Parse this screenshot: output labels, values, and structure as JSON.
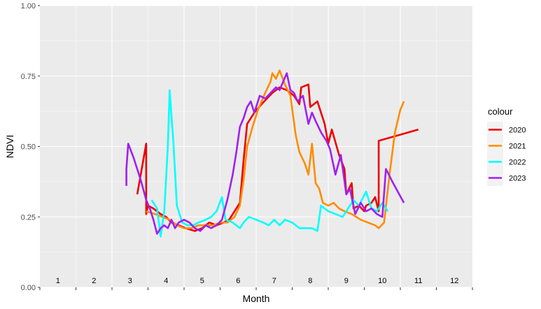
{
  "chart_data": {
    "type": "line",
    "xlabel": "Month",
    "ylabel": "NDVI",
    "xlim": [
      0.5,
      12.5
    ],
    "ylim": [
      0,
      1
    ],
    "yticks": [
      0.0,
      0.25,
      0.5,
      0.75,
      1.0
    ],
    "ytick_labels": [
      "0.00",
      "0.25",
      "0.50",
      "0.75",
      "1.00"
    ],
    "month_labels": [
      "1",
      "2",
      "3",
      "4",
      "5",
      "6",
      "7",
      "8",
      "9",
      "10",
      "11",
      "12"
    ],
    "grid": true,
    "background": "#ebebeb",
    "legend": {
      "title": "colour",
      "position": "right"
    },
    "series": [
      {
        "name": "2020",
        "color": "#ee0000",
        "points": [
          [
            3.2,
            0.33
          ],
          [
            3.45,
            0.51
          ],
          [
            3.45,
            0.26
          ],
          [
            3.5,
            0.29
          ],
          [
            3.65,
            0.28
          ],
          [
            3.85,
            0.26
          ],
          [
            4.0,
            0.25
          ],
          [
            4.15,
            0.23
          ],
          [
            4.35,
            0.22
          ],
          [
            4.55,
            0.21
          ],
          [
            4.8,
            0.2
          ],
          [
            5.0,
            0.21
          ],
          [
            5.2,
            0.23
          ],
          [
            5.4,
            0.22
          ],
          [
            5.6,
            0.23
          ],
          [
            5.75,
            0.24
          ],
          [
            5.9,
            0.27
          ],
          [
            6.05,
            0.3
          ],
          [
            6.15,
            0.45
          ],
          [
            6.25,
            0.58
          ],
          [
            6.45,
            0.62
          ],
          [
            6.65,
            0.65
          ],
          [
            6.8,
            0.67
          ],
          [
            6.95,
            0.69
          ],
          [
            7.15,
            0.71
          ],
          [
            7.35,
            0.7
          ],
          [
            7.55,
            0.68
          ],
          [
            7.7,
            0.65
          ],
          [
            7.75,
            0.71
          ],
          [
            7.95,
            0.72
          ],
          [
            8.0,
            0.64
          ],
          [
            8.2,
            0.66
          ],
          [
            8.4,
            0.58
          ],
          [
            8.5,
            0.51
          ],
          [
            8.6,
            0.56
          ],
          [
            8.8,
            0.47
          ],
          [
            8.95,
            0.42
          ],
          [
            9.0,
            0.33
          ],
          [
            9.15,
            0.37
          ],
          [
            9.2,
            0.28
          ],
          [
            9.35,
            0.29
          ],
          [
            9.5,
            0.27
          ],
          [
            9.55,
            0.29
          ],
          [
            9.7,
            0.3
          ],
          [
            9.8,
            0.32
          ],
          [
            9.9,
            0.27
          ],
          [
            9.9,
            0.52
          ],
          [
            10.45,
            0.54
          ],
          [
            11.0,
            0.56
          ]
        ]
      },
      {
        "name": "2021",
        "color": "#ff8c00",
        "points": [
          [
            3.45,
            0.27
          ],
          [
            3.7,
            0.26
          ],
          [
            3.9,
            0.25
          ],
          [
            4.1,
            0.24
          ],
          [
            4.3,
            0.22
          ],
          [
            4.5,
            0.21
          ],
          [
            4.7,
            0.21
          ],
          [
            4.9,
            0.22
          ],
          [
            5.1,
            0.22
          ],
          [
            5.3,
            0.22
          ],
          [
            5.5,
            0.23
          ],
          [
            5.7,
            0.23
          ],
          [
            5.9,
            0.25
          ],
          [
            6.05,
            0.29
          ],
          [
            6.15,
            0.38
          ],
          [
            6.25,
            0.5
          ],
          [
            6.4,
            0.57
          ],
          [
            6.55,
            0.63
          ],
          [
            6.75,
            0.69
          ],
          [
            6.9,
            0.73
          ],
          [
            6.95,
            0.76
          ],
          [
            7.05,
            0.74
          ],
          [
            7.15,
            0.77
          ],
          [
            7.3,
            0.72
          ],
          [
            7.45,
            0.68
          ],
          [
            7.6,
            0.54
          ],
          [
            7.7,
            0.48
          ],
          [
            7.85,
            0.44
          ],
          [
            7.95,
            0.4
          ],
          [
            8.05,
            0.51
          ],
          [
            8.15,
            0.37
          ],
          [
            8.25,
            0.35
          ],
          [
            8.35,
            0.3
          ],
          [
            8.5,
            0.29
          ],
          [
            8.65,
            0.3
          ],
          [
            8.8,
            0.28
          ],
          [
            8.95,
            0.27
          ],
          [
            9.15,
            0.26
          ],
          [
            9.4,
            0.24
          ],
          [
            9.6,
            0.23
          ],
          [
            9.8,
            0.22
          ],
          [
            9.9,
            0.21
          ],
          [
            10.05,
            0.23
          ],
          [
            10.2,
            0.4
          ],
          [
            10.35,
            0.55
          ],
          [
            10.5,
            0.63
          ],
          [
            10.6,
            0.66
          ]
        ]
      },
      {
        "name": "2022",
        "color": "#00ffff",
        "points": [
          [
            3.6,
            0.31
          ],
          [
            3.75,
            0.28
          ],
          [
            3.85,
            0.18
          ],
          [
            3.95,
            0.27
          ],
          [
            4.05,
            0.5
          ],
          [
            4.1,
            0.7
          ],
          [
            4.2,
            0.52
          ],
          [
            4.3,
            0.29
          ],
          [
            4.45,
            0.23
          ],
          [
            4.6,
            0.22
          ],
          [
            4.75,
            0.22
          ],
          [
            4.9,
            0.23
          ],
          [
            5.1,
            0.24
          ],
          [
            5.25,
            0.25
          ],
          [
            5.4,
            0.27
          ],
          [
            5.55,
            0.32
          ],
          [
            5.65,
            0.24
          ],
          [
            5.85,
            0.23
          ],
          [
            6.05,
            0.21
          ],
          [
            6.15,
            0.23
          ],
          [
            6.3,
            0.25
          ],
          [
            6.5,
            0.24
          ],
          [
            6.7,
            0.23
          ],
          [
            6.85,
            0.22
          ],
          [
            7.0,
            0.24
          ],
          [
            7.15,
            0.22
          ],
          [
            7.3,
            0.24
          ],
          [
            7.5,
            0.23
          ],
          [
            7.7,
            0.21
          ],
          [
            7.9,
            0.21
          ],
          [
            8.05,
            0.21
          ],
          [
            8.2,
            0.2
          ],
          [
            8.3,
            0.29
          ],
          [
            8.5,
            0.27
          ],
          [
            8.7,
            0.26
          ],
          [
            8.9,
            0.25
          ],
          [
            9.05,
            0.28
          ],
          [
            9.2,
            0.31
          ],
          [
            9.35,
            0.29
          ],
          [
            9.55,
            0.34
          ],
          [
            9.7,
            0.28
          ],
          [
            9.85,
            0.27
          ],
          [
            10.0,
            0.3
          ],
          [
            10.15,
            0.27
          ]
        ]
      },
      {
        "name": "2023",
        "color": "#a020f0",
        "points": [
          [
            2.9,
            0.36
          ],
          [
            2.9,
            0.42
          ],
          [
            2.95,
            0.51
          ],
          [
            3.1,
            0.46
          ],
          [
            3.3,
            0.38
          ],
          [
            3.45,
            0.31
          ],
          [
            3.55,
            0.28
          ],
          [
            3.65,
            0.24
          ],
          [
            3.75,
            0.19
          ],
          [
            3.85,
            0.21
          ],
          [
            3.95,
            0.22
          ],
          [
            4.05,
            0.21
          ],
          [
            4.15,
            0.24
          ],
          [
            4.25,
            0.21
          ],
          [
            4.35,
            0.23
          ],
          [
            4.5,
            0.24
          ],
          [
            4.65,
            0.23
          ],
          [
            4.8,
            0.21
          ],
          [
            4.95,
            0.2
          ],
          [
            5.1,
            0.22
          ],
          [
            5.25,
            0.21
          ],
          [
            5.4,
            0.22
          ],
          [
            5.55,
            0.24
          ],
          [
            5.7,
            0.31
          ],
          [
            5.85,
            0.4
          ],
          [
            5.95,
            0.48
          ],
          [
            6.05,
            0.57
          ],
          [
            6.15,
            0.6
          ],
          [
            6.25,
            0.64
          ],
          [
            6.35,
            0.66
          ],
          [
            6.45,
            0.62
          ],
          [
            6.6,
            0.68
          ],
          [
            6.75,
            0.67
          ],
          [
            6.9,
            0.69
          ],
          [
            7.05,
            0.71
          ],
          [
            7.15,
            0.7
          ],
          [
            7.25,
            0.73
          ],
          [
            7.35,
            0.76
          ],
          [
            7.45,
            0.7
          ],
          [
            7.55,
            0.69
          ],
          [
            7.65,
            0.66
          ],
          [
            7.8,
            0.68
          ],
          [
            7.95,
            0.58
          ],
          [
            8.05,
            0.62
          ],
          [
            8.15,
            0.59
          ],
          [
            8.3,
            0.55
          ],
          [
            8.45,
            0.52
          ],
          [
            8.55,
            0.49
          ],
          [
            8.7,
            0.4
          ],
          [
            8.85,
            0.47
          ],
          [
            9.0,
            0.33
          ],
          [
            9.1,
            0.35
          ],
          [
            9.25,
            0.26
          ],
          [
            9.4,
            0.3
          ],
          [
            9.55,
            0.27
          ],
          [
            9.7,
            0.28
          ],
          [
            9.85,
            0.26
          ],
          [
            10.0,
            0.25
          ],
          [
            10.1,
            0.42
          ],
          [
            10.3,
            0.37
          ],
          [
            10.6,
            0.3
          ]
        ]
      }
    ]
  }
}
